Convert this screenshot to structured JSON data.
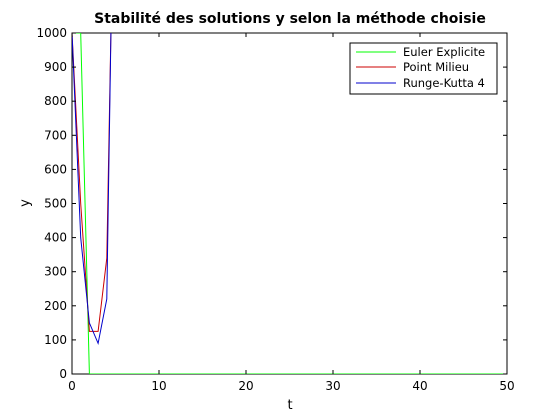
{
  "chart_data": {
    "type": "line",
    "title": "Stabilité des solutions y selon la méthode choisie",
    "xlabel": "t",
    "ylabel": "y",
    "xlim": [
      0,
      50
    ],
    "ylim": [
      0,
      1000
    ],
    "xticks": [
      0,
      10,
      20,
      30,
      40,
      50
    ],
    "yticks": [
      0,
      100,
      200,
      300,
      400,
      500,
      600,
      700,
      800,
      900,
      1000
    ],
    "grid": false,
    "legend_position": "top-right",
    "series": [
      {
        "name": "Euler Explicite",
        "color": "#00ff00",
        "x": [
          0,
          1,
          2,
          3,
          50
        ],
        "y": [
          1000,
          1000,
          0,
          0,
          0
        ]
      },
      {
        "name": "Point Milieu",
        "color": "#cc0000",
        "x": [
          0,
          1,
          2,
          3,
          4,
          4.5
        ],
        "y": [
          1000,
          500,
          125,
          125,
          340,
          1050
        ]
      },
      {
        "name": "Runge-Kutta 4",
        "color": "#0000cc",
        "x": [
          0,
          1,
          2,
          3,
          4,
          4.5
        ],
        "y": [
          1000,
          400,
          150,
          90,
          220,
          1050
        ]
      }
    ]
  }
}
